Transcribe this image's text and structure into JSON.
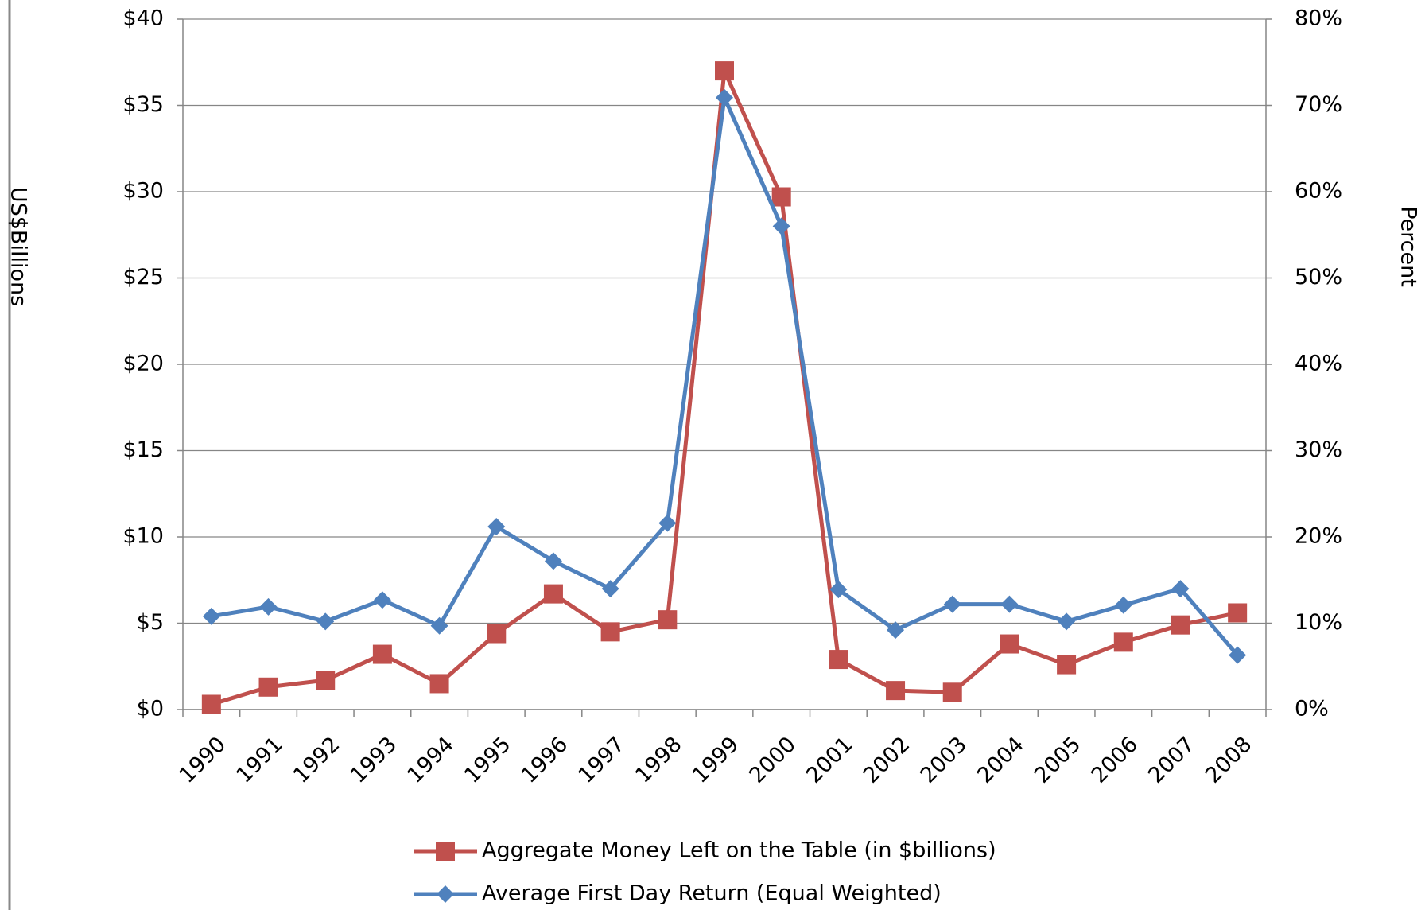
{
  "chart_data": {
    "type": "line",
    "categories": [
      "1990",
      "1991",
      "1992",
      "1993",
      "1994",
      "1995",
      "1996",
      "1997",
      "1998",
      "1999",
      "2000",
      "2001",
      "2002",
      "2003",
      "2004",
      "2005",
      "2006",
      "2007",
      "2008"
    ],
    "series": [
      {
        "name": "Aggregate Money Left on the Table (in $billions)",
        "color": "#c0504d",
        "marker": "square",
        "axis": "y",
        "values": [
          0.3,
          1.3,
          1.7,
          3.2,
          1.5,
          4.4,
          6.7,
          4.5,
          5.2,
          37,
          29.7,
          2.9,
          1.1,
          1.0,
          3.8,
          2.6,
          3.9,
          4.9,
          5.6
        ]
      },
      {
        "name": "Average First Day Return (Equal Weighted)",
        "color": "#4f81bd",
        "marker": "diamond",
        "axis": "y2",
        "values": [
          10.8,
          11.9,
          10.2,
          12.7,
          9.7,
          21.2,
          17.2,
          14.0,
          21.6,
          70.9,
          56.0,
          13.9,
          9.2,
          12.2,
          12.2,
          10.2,
          12.1,
          14.0,
          6.3
        ]
      }
    ],
    "ylabel": "US$Billions",
    "y2label": "Percent",
    "ylim": [
      0,
      40
    ],
    "yticks": [
      {
        "value": 0,
        "label": "$0"
      },
      {
        "value": 5,
        "label": "$5"
      },
      {
        "value": 10,
        "label": "$10"
      },
      {
        "value": 15,
        "label": "$15"
      },
      {
        "value": 20,
        "label": "$20"
      },
      {
        "value": 25,
        "label": "$25"
      },
      {
        "value": 30,
        "label": "$30"
      },
      {
        "value": 35,
        "label": "$35"
      },
      {
        "value": 40,
        "label": "$40"
      }
    ],
    "y2lim": [
      0,
      80
    ],
    "y2ticks": [
      {
        "value": 0,
        "label": "0%"
      },
      {
        "value": 10,
        "label": "10%"
      },
      {
        "value": 20,
        "label": "20%"
      },
      {
        "value": 30,
        "label": "30%"
      },
      {
        "value": 40,
        "label": "40%"
      },
      {
        "value": 50,
        "label": "50%"
      },
      {
        "value": 60,
        "label": "60%"
      },
      {
        "value": 70,
        "label": "70%"
      },
      {
        "value": 80,
        "label": "80%"
      }
    ],
    "grid": true,
    "legend": "bottom"
  }
}
